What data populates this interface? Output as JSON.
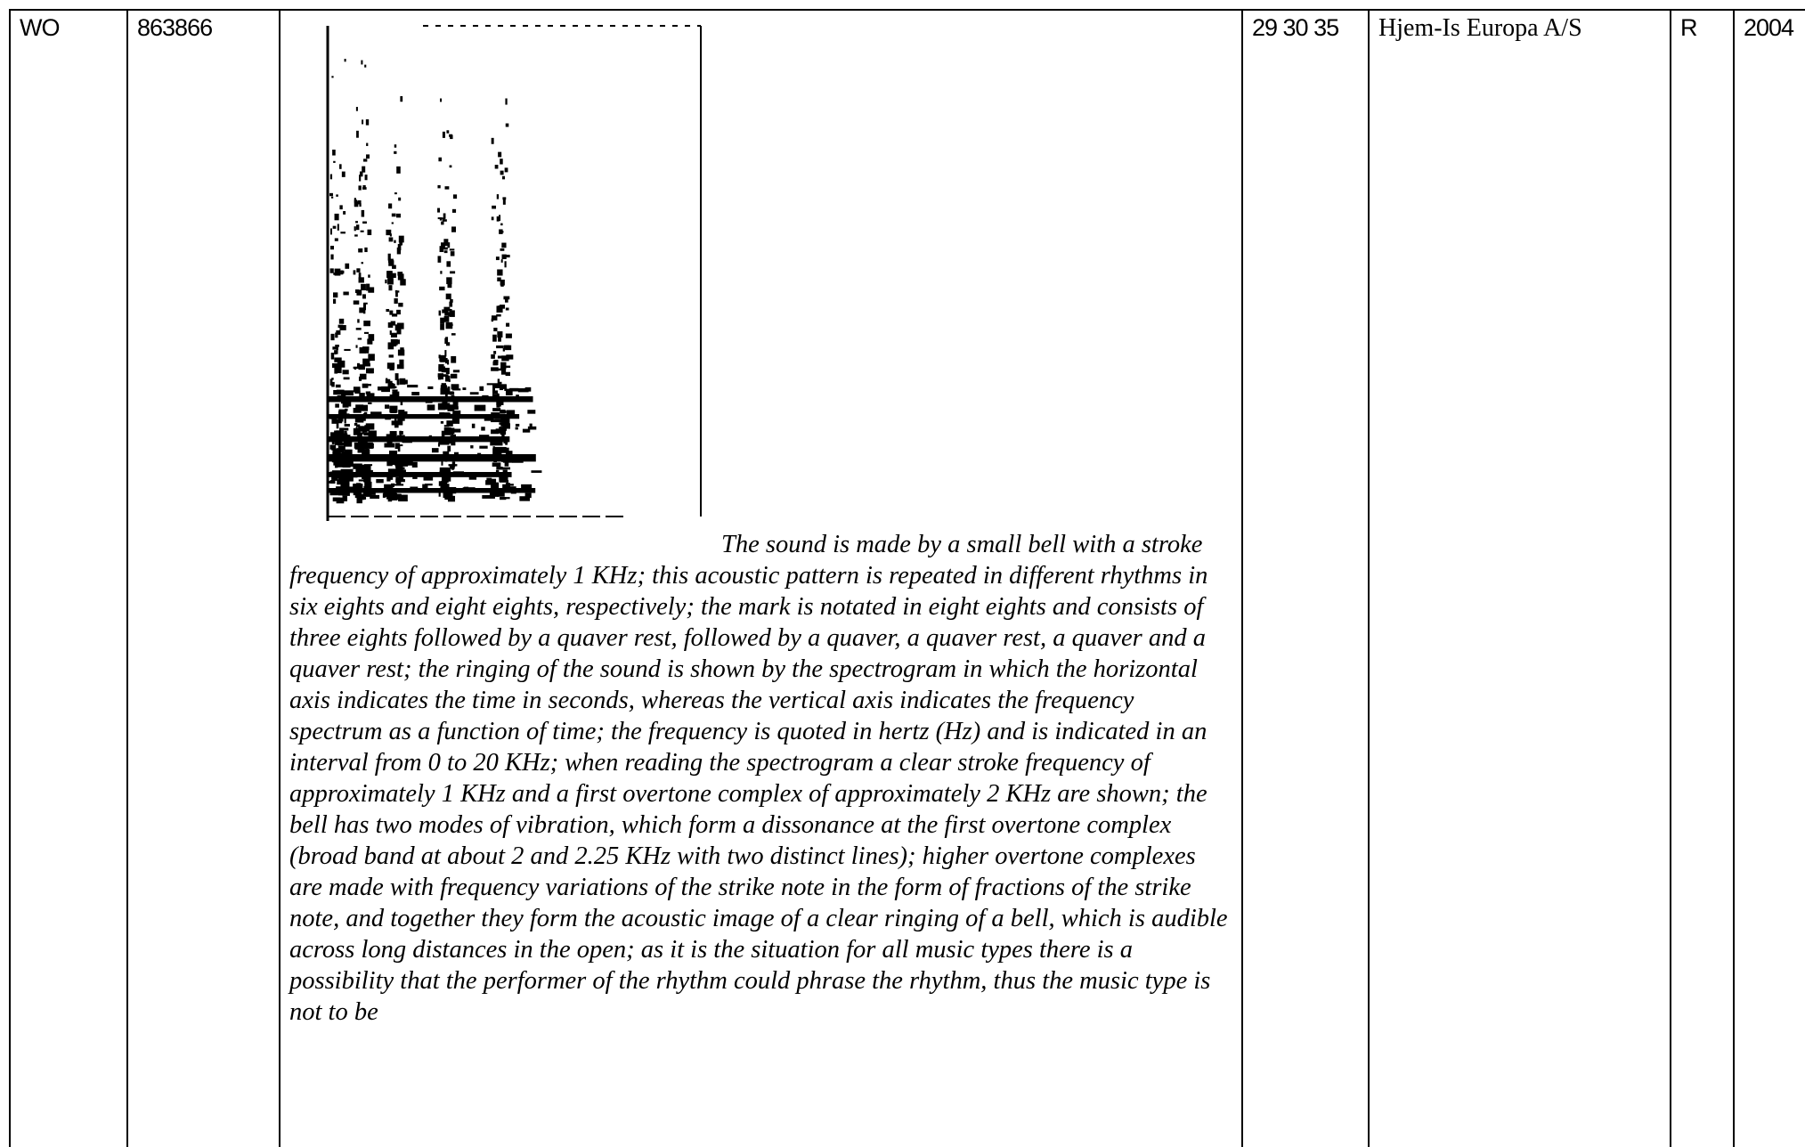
{
  "row": {
    "cells": [
      "WO",
      "863866",
      "29 30 35",
      "Hjem-Is Europa A/S",
      "R",
      "2004"
    ],
    "description": "The sound is made by a small bell with a stroke frequency of approximately 1 KHz; this acoustic pattern is repeated in different rhythms in six eights and eight eights, respectively; the mark is notated in eight eights and consists of three eights followed by a quaver rest, followed by a quaver, a quaver rest, a quaver and a quaver rest; the ringing of the sound is shown by the spectrogram in which the horizontal axis indicates the time in seconds, whereas the vertical axis indicates the frequency spectrum as a function of time; the frequency is quoted in hertz (Hz) and is indicated in an interval from 0 to 20 KHz; when reading the spectrogram a clear stroke frequency of approximately 1 KHz and a first overtone complex of approximately 2 KHz are shown; the bell has two modes of vibration, which form a dissonance at the first overtone complex (broad band at about 2 and 2.25 KHz with two distinct lines); higher overtone complexes are made with frequency variations of the strike note in the form of fractions of the strike note, and together they form the acoustic image of a clear ringing of a bell, which is audible across long distances in the open; as it is the situation for all music types there is a possibility that the performer of the rhythm could phrase the rhythm, thus the music type is not to be"
  }
}
